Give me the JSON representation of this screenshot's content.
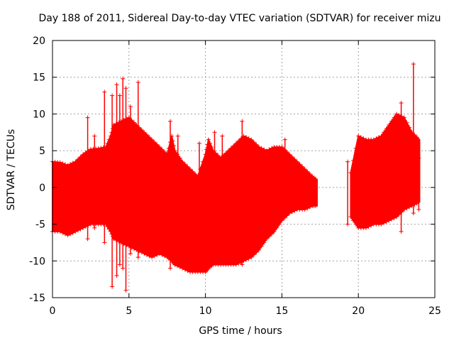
{
  "chart_data": {
    "type": "scatter",
    "title": "Day 188 of 2011, Sidereal Day-to-day VTEC variation (SDTVAR) for receiver mizu",
    "xlabel": "GPS time / hours",
    "ylabel": "SDTVAR / TECUs",
    "xlim": [
      0,
      25
    ],
    "ylim": [
      -15,
      20
    ],
    "xticks": [
      0,
      5,
      10,
      15,
      20,
      25
    ],
    "yticks": [
      -15,
      -10,
      -5,
      0,
      5,
      10,
      15,
      20
    ],
    "grid": true,
    "marker": "+",
    "color": "#ff0000",
    "series": [
      {
        "name": "SDTVAR",
        "envelope": {
          "description": "dense point cloud, upper/lower bounds over time",
          "x": [
            0,
            0.5,
            1,
            1.5,
            2,
            2.5,
            3,
            3.5,
            3.8,
            4,
            4.5,
            5,
            5.5,
            6,
            6.5,
            7,
            7.5,
            7.8,
            8,
            8.5,
            9,
            9.5,
            10,
            10.2,
            10.5,
            11,
            11.5,
            12,
            12.5,
            13,
            13.5,
            14,
            14.5,
            15,
            15.5,
            16,
            16.5,
            17,
            17.3
          ],
          "upper": [
            3.5,
            3.4,
            3.0,
            3.5,
            4.5,
            5.2,
            5.3,
            5.5,
            7.0,
            8.5,
            9.0,
            9.5,
            8.5,
            7.5,
            6.5,
            5.5,
            4.5,
            7.0,
            5.0,
            3.5,
            2.5,
            1.5,
            4.5,
            6.5,
            5.0,
            4.0,
            5.0,
            6.0,
            7.0,
            6.5,
            5.5,
            5.0,
            5.5,
            5.5,
            4.5,
            3.5,
            2.5,
            1.5,
            1.0
          ],
          "lower": [
            -6.0,
            -6.0,
            -6.5,
            -6.0,
            -5.5,
            -5.0,
            -5.0,
            -5.0,
            -6.0,
            -7.0,
            -7.5,
            -8.0,
            -8.5,
            -9.0,
            -9.5,
            -9.0,
            -9.5,
            -10.0,
            -10.5,
            -11.0,
            -11.5,
            -11.5,
            -11.5,
            -11.0,
            -10.5,
            -10.5,
            -10.5,
            -10.5,
            -10.0,
            -9.5,
            -8.5,
            -7.0,
            -6.0,
            -4.5,
            -3.5,
            -3.0,
            -3.0,
            -2.5,
            -2.5
          ]
        },
        "envelope2": {
          "x": [
            19.5,
            20,
            20.5,
            21,
            21.5,
            22,
            22.5,
            23,
            23.5,
            24
          ],
          "upper": [
            2.0,
            7.0,
            6.5,
            6.5,
            7.0,
            8.5,
            10.0,
            9.5,
            7.5,
            6.5
          ],
          "lower": [
            -4.0,
            -5.5,
            -5.5,
            -5.0,
            -5.0,
            -4.5,
            -4.0,
            -3.0,
            -2.5,
            -2.0
          ]
        },
        "spikes": [
          {
            "x": 2.3,
            "y_max": 9.5,
            "y_min": -7.0
          },
          {
            "x": 2.75,
            "y_max": 7.0,
            "y_min": -5.5
          },
          {
            "x": 3.4,
            "y_max": 13.0,
            "y_min": -7.5
          },
          {
            "x": 3.9,
            "y_max": 12.5,
            "y_min": -13.5
          },
          {
            "x": 4.2,
            "y_max": 14.0,
            "y_min": -12.0
          },
          {
            "x": 4.4,
            "y_max": 12.5,
            "y_min": -10.5
          },
          {
            "x": 4.6,
            "y_max": 14.8,
            "y_min": -11.0
          },
          {
            "x": 4.8,
            "y_max": 13.5,
            "y_min": -14.0
          },
          {
            "x": 5.1,
            "y_max": 11.0,
            "y_min": -9.0
          },
          {
            "x": 5.6,
            "y_max": 14.3,
            "y_min": -9.5
          },
          {
            "x": 7.7,
            "y_max": 9.0,
            "y_min": -11.0
          },
          {
            "x": 8.2,
            "y_max": 7.0,
            "y_min": -10.0
          },
          {
            "x": 9.6,
            "y_max": 6.0,
            "y_min": -10.5
          },
          {
            "x": 10.6,
            "y_max": 7.5,
            "y_min": -10.0
          },
          {
            "x": 11.1,
            "y_max": 7.0,
            "y_min": -10.0
          },
          {
            "x": 12.4,
            "y_max": 9.0,
            "y_min": -10.5
          },
          {
            "x": 15.2,
            "y_max": 6.5,
            "y_min": -3.0
          },
          {
            "x": 19.3,
            "y_max": 3.5,
            "y_min": -5.0
          },
          {
            "x": 22.8,
            "y_max": 11.5,
            "y_min": -6.0
          },
          {
            "x": 23.6,
            "y_max": 16.8,
            "y_min": -3.5
          },
          {
            "x": 23.95,
            "y_max": 4.0,
            "y_min": -3.0
          }
        ]
      }
    ]
  }
}
